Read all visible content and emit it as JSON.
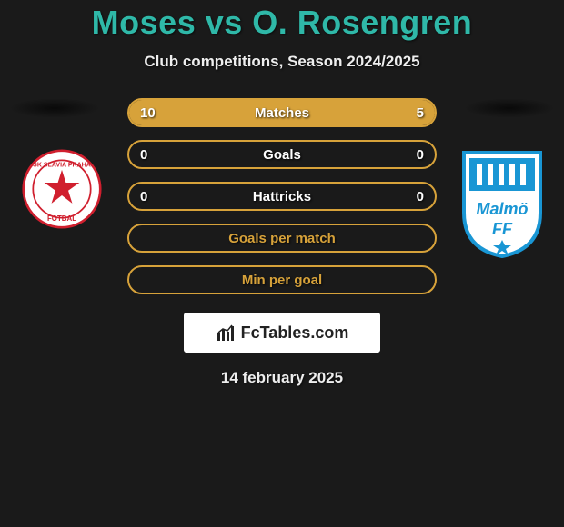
{
  "title": "Moses vs O. Rosengren",
  "subtitle": "Club competitions, Season 2024/2025",
  "date": "14 february 2025",
  "brand": "FcTables.com",
  "colors": {
    "title": "#2fb8a8",
    "accent": "#d7a23a",
    "background": "#1a1a1a",
    "text": "#ffffff"
  },
  "club_left": {
    "name": "SK Slavia Praha",
    "badge_bg": "#ffffff",
    "badge_ring": "#d01f2e",
    "badge_star": "#d01f2e"
  },
  "club_right": {
    "name": "Malmö FF",
    "badge_bg": "#ffffff",
    "badge_ring": "#1996d4",
    "badge_text": "Malmö FF"
  },
  "rows": [
    {
      "label": "Matches",
      "left_val": "10",
      "right_val": "5",
      "left_fill_pct": 66.7,
      "right_fill_pct": 33.3,
      "show_vals": true
    },
    {
      "label": "Goals",
      "left_val": "0",
      "right_val": "0",
      "left_fill_pct": 0,
      "right_fill_pct": 0,
      "show_vals": true
    },
    {
      "label": "Hattricks",
      "left_val": "0",
      "right_val": "0",
      "left_fill_pct": 0,
      "right_fill_pct": 0,
      "show_vals": true
    },
    {
      "label": "Goals per match",
      "left_val": "",
      "right_val": "",
      "left_fill_pct": 0,
      "right_fill_pct": 0,
      "show_vals": false
    },
    {
      "label": "Min per goal",
      "left_val": "",
      "right_val": "",
      "left_fill_pct": 0,
      "right_fill_pct": 0,
      "show_vals": false
    }
  ]
}
